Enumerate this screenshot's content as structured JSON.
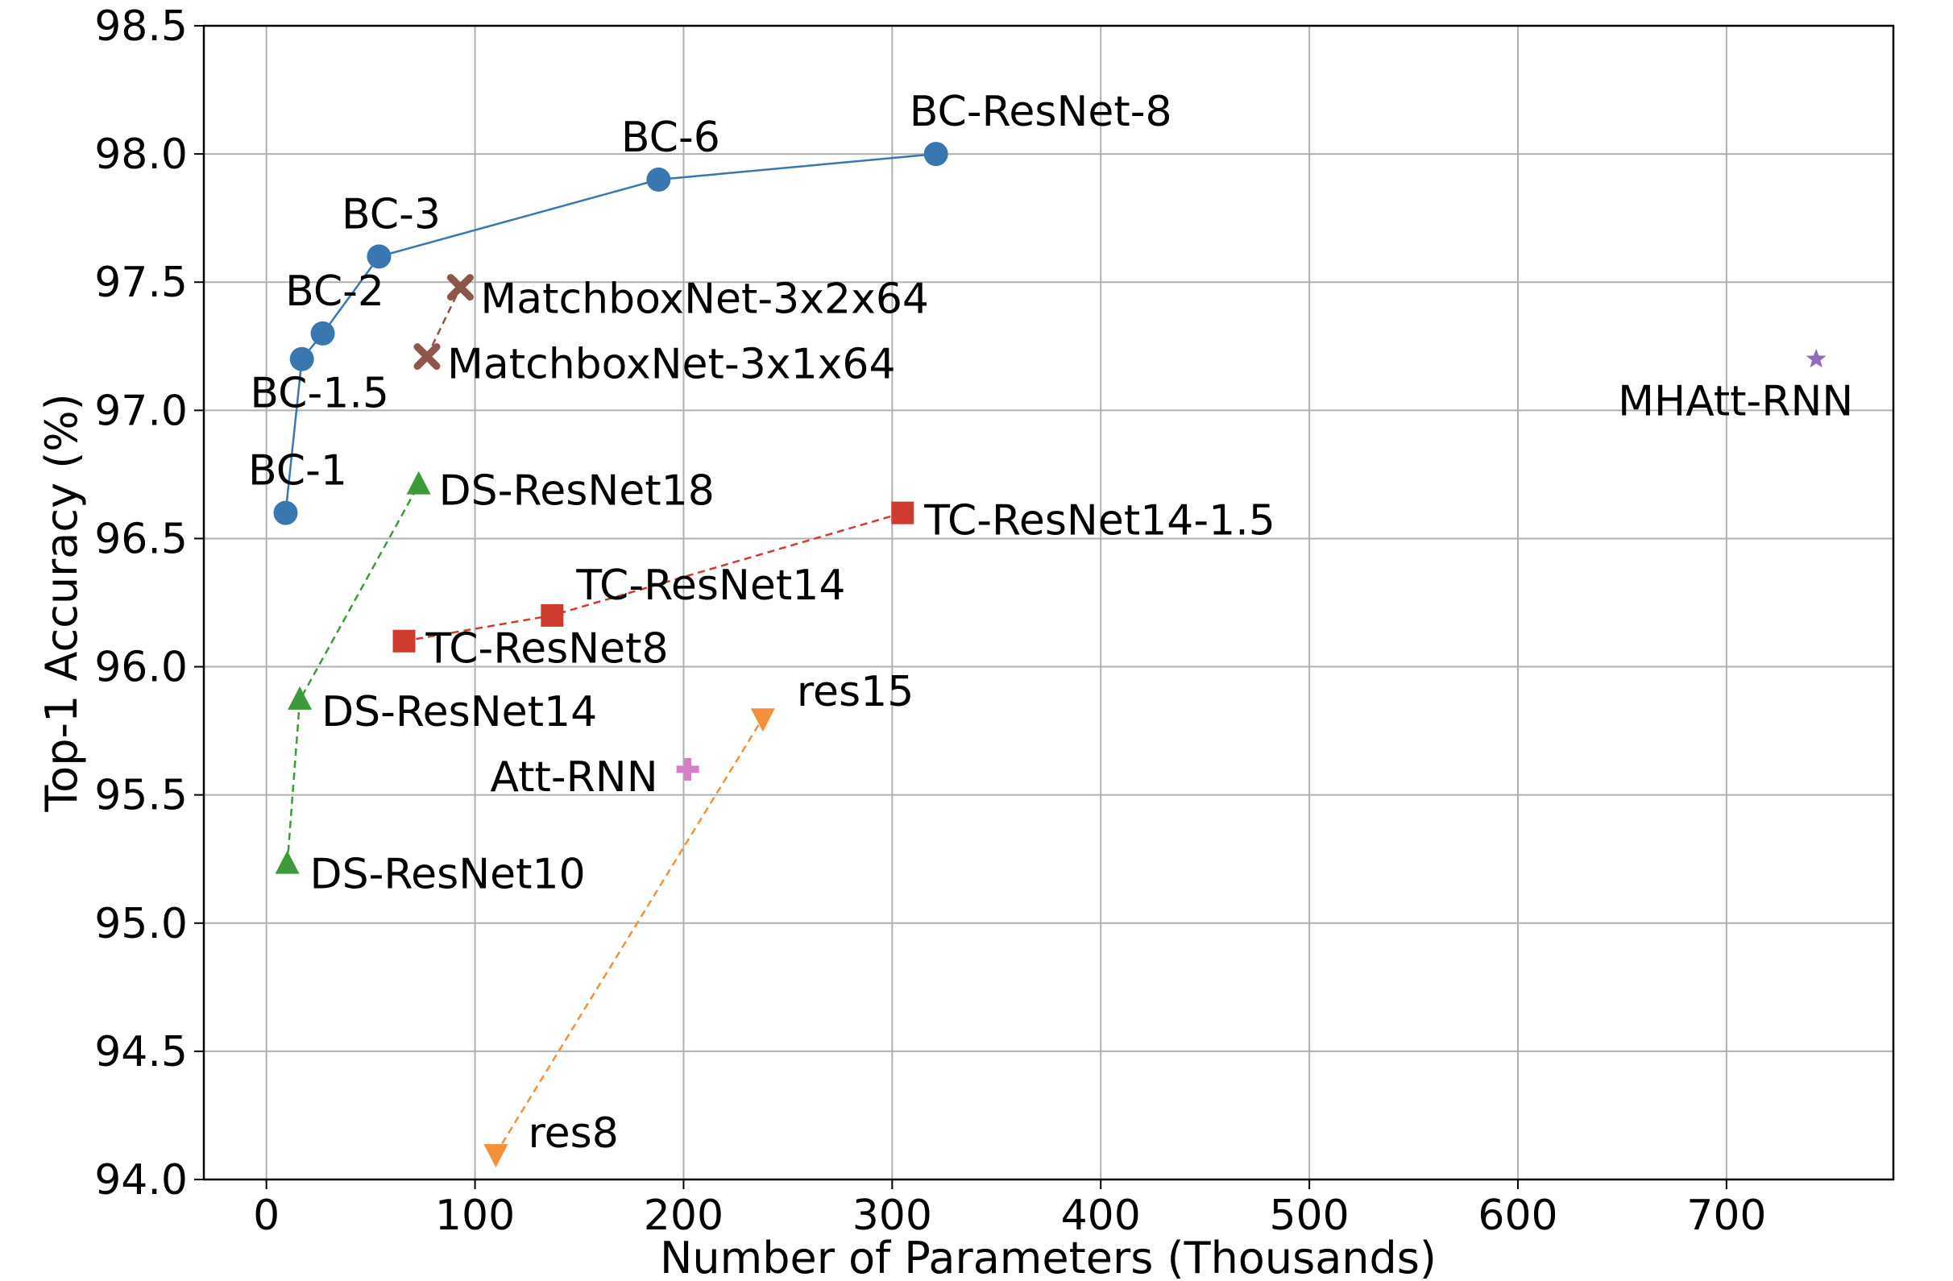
{
  "chart_data": {
    "type": "scatter",
    "xlabel": "Number of Parameters (Thousands)",
    "ylabel": "Top-1 Accuracy (%)",
    "xlim": [
      -30,
      780
    ],
    "ylim": [
      94.0,
      98.5
    ],
    "xticks": [
      0,
      100,
      200,
      300,
      400,
      500,
      600,
      700
    ],
    "yticks": [
      94.0,
      94.5,
      95.0,
      95.5,
      96.0,
      96.5,
      97.0,
      97.5,
      98.0,
      98.5
    ],
    "grid": true,
    "series": [
      {
        "key": "bc-resnet",
        "color": "#3a76b0",
        "marker": "circle",
        "line": "solid",
        "points": [
          {
            "label": "BC-1",
            "x": 9.2,
            "y": 96.6
          },
          {
            "label": "BC-1.5",
            "x": 17,
            "y": 97.2
          },
          {
            "label": "BC-2",
            "x": 27,
            "y": 97.3
          },
          {
            "label": "BC-3",
            "x": 54,
            "y": 97.6
          },
          {
            "label": "BC-6",
            "x": 188,
            "y": 97.9
          },
          {
            "label": "BC-ResNet-8",
            "x": 321,
            "y": 98.0
          }
        ]
      },
      {
        "key": "matchboxnet",
        "color": "#8c564b",
        "marker": "x",
        "line": "dashed",
        "points": [
          {
            "label": "MatchboxNet-3x1x64",
            "x": 77,
            "y": 97.21
          },
          {
            "label": "MatchboxNet-3x2x64",
            "x": 93,
            "y": 97.48
          }
        ]
      },
      {
        "key": "ds-resnet",
        "color": "#3d9a3a",
        "marker": "triangle-up",
        "line": "dashed",
        "points": [
          {
            "label": "DS-ResNet10",
            "x": 10,
            "y": 95.23
          },
          {
            "label": "DS-ResNet14",
            "x": 16,
            "y": 95.87
          },
          {
            "label": "DS-ResNet18",
            "x": 73,
            "y": 96.71
          }
        ]
      },
      {
        "key": "tc-resnet",
        "color": "#d03b2f",
        "marker": "square",
        "line": "dashed",
        "points": [
          {
            "label": "TC-ResNet8",
            "x": 66,
            "y": 96.1
          },
          {
            "label": "TC-ResNet14",
            "x": 137,
            "y": 96.2
          },
          {
            "label": "TC-ResNet14-1.5",
            "x": 305,
            "y": 96.6
          }
        ]
      },
      {
        "key": "res",
        "color": "#f5903a",
        "marker": "triangle-down",
        "line": "dashed",
        "points": [
          {
            "label": "res8",
            "x": 110,
            "y": 94.1
          },
          {
            "label": "res15",
            "x": 238,
            "y": 95.8
          }
        ]
      },
      {
        "key": "att-rnn",
        "color": "#d57fc8",
        "marker": "plus",
        "line": "none",
        "points": [
          {
            "label": "Att-RNN",
            "x": 202,
            "y": 95.6
          }
        ]
      },
      {
        "key": "mhatt-rnn",
        "color": "#8e6bbd",
        "marker": "star",
        "line": "none",
        "points": [
          {
            "label": "MHAtt-RNN",
            "x": 743,
            "y": 97.2
          }
        ]
      }
    ]
  }
}
